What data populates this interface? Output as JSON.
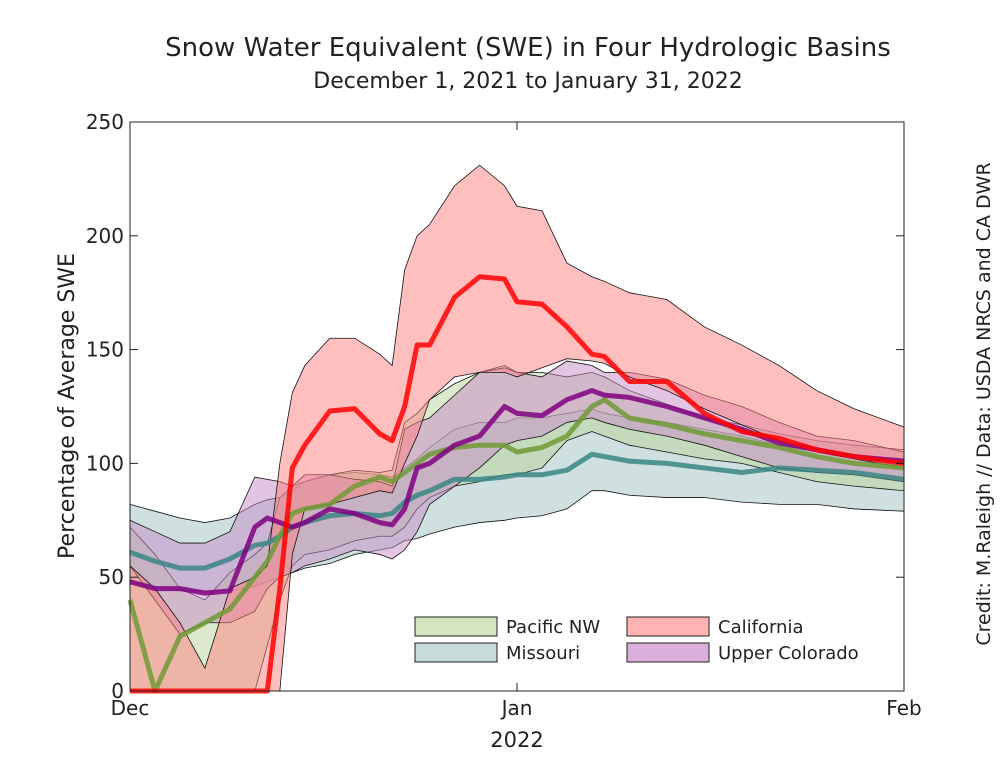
{
  "chart_data": {
    "type": "area",
    "title": "Snow Water Equivalent (SWE) in Four Hydrologic Basins",
    "subtitle": "December 1, 2021 to January 31, 2022",
    "ylabel": "Percentage of Average SWE",
    "xlabel": "2022",
    "credit": "Credit: M.Raleigh // Data: USDA NRCS and CA DWR",
    "xlim": [
      "2021-12-01",
      "2022-02-01"
    ],
    "ylim": [
      0,
      250
    ],
    "grid": false,
    "legend_position": "bottom-right",
    "x_ticks": [
      {
        "date": "2021-12-01",
        "label": "Dec"
      },
      {
        "date": "2022-01-01",
        "label": "Jan"
      },
      {
        "date": "2022-02-01",
        "label": "Feb"
      }
    ],
    "y_ticks": [
      0,
      50,
      100,
      150,
      200,
      250
    ],
    "dates": [
      "2021-12-01",
      "2021-12-03",
      "2021-12-05",
      "2021-12-07",
      "2021-12-09",
      "2021-12-11",
      "2021-12-12",
      "2021-12-13",
      "2021-12-14",
      "2021-12-15",
      "2021-12-17",
      "2021-12-19",
      "2021-12-21",
      "2021-12-22",
      "2021-12-23",
      "2021-12-24",
      "2021-12-25",
      "2021-12-27",
      "2021-12-29",
      "2021-12-31",
      "2022-01-01",
      "2022-01-03",
      "2022-01-05",
      "2022-01-07",
      "2022-01-08",
      "2022-01-10",
      "2022-01-13",
      "2022-01-16",
      "2022-01-19",
      "2022-01-22",
      "2022-01-25",
      "2022-01-28",
      "2022-02-01"
    ],
    "series": [
      {
        "name": "Missouri",
        "fill": "#9fc2c2",
        "line": "#3a8585",
        "mean": [
          61,
          57,
          54,
          54,
          58,
          64,
          65,
          68,
          72,
          74,
          77,
          78,
          77,
          78,
          83,
          86,
          88,
          93,
          93,
          94,
          95,
          95,
          97,
          104,
          103,
          101,
          100,
          98,
          96,
          98,
          97,
          96,
          93
        ],
        "high": [
          82,
          79,
          76,
          74,
          76,
          82,
          84,
          85,
          88,
          92,
          95,
          96,
          95,
          94,
          98,
          102,
          107,
          115,
          118,
          118,
          120,
          120,
          122,
          124,
          122,
          120,
          118,
          115,
          112,
          108,
          106,
          104,
          101
        ],
        "low": [
          48,
          46,
          44,
          44,
          44,
          46,
          48,
          50,
          52,
          54,
          56,
          60,
          62,
          63,
          66,
          67,
          69,
          72,
          74,
          75,
          76,
          77,
          80,
          88,
          88,
          86,
          85,
          85,
          83,
          82,
          82,
          80,
          79
        ]
      },
      {
        "name": "Pacific NW",
        "fill": "#b9d49a",
        "line": "#6f9a35",
        "mean": [
          40,
          0,
          24,
          30,
          36,
          50,
          57,
          68,
          78,
          80,
          82,
          90,
          94,
          92,
          96,
          100,
          104,
          107,
          108,
          108,
          105,
          107,
          112,
          125,
          128,
          120,
          117,
          113,
          110,
          107,
          103,
          100,
          98
        ],
        "high": [
          72,
          60,
          45,
          40,
          52,
          60,
          65,
          85,
          90,
          92,
          95,
          97,
          96,
          97,
          118,
          122,
          128,
          135,
          140,
          143,
          140,
          140,
          138,
          140,
          138,
          132,
          126,
          120,
          117,
          113,
          110,
          108,
          106
        ],
        "low": [
          0,
          0,
          0,
          0,
          0,
          0,
          20,
          40,
          55,
          60,
          62,
          66,
          68,
          68,
          72,
          80,
          85,
          90,
          92,
          95,
          95,
          98,
          110,
          114,
          112,
          108,
          105,
          102,
          100,
          96,
          92,
          90,
          88
        ]
      },
      {
        "name": "Upper Colorado",
        "fill": "#c78ac7",
        "line": "#800080",
        "mean": [
          48,
          45,
          45,
          43,
          44,
          72,
          76,
          74,
          72,
          74,
          80,
          78,
          74,
          73,
          80,
          98,
          100,
          108,
          112,
          125,
          122,
          121,
          128,
          132,
          130,
          129,
          125,
          120,
          115,
          109,
          106,
          103,
          101
        ],
        "high": [
          75,
          70,
          65,
          65,
          70,
          94,
          93,
          92,
          90,
          95,
          95,
          93,
          92,
          90,
          115,
          118,
          120,
          130,
          140,
          142,
          140,
          138,
          145,
          143,
          140,
          140,
          137,
          130,
          125,
          118,
          112,
          110,
          105
        ],
        "low": [
          55,
          40,
          25,
          30,
          30,
          35,
          45,
          50,
          52,
          55,
          58,
          62,
          60,
          58,
          62,
          70,
          82,
          90,
          98,
          108,
          110,
          112,
          118,
          120,
          118,
          115,
          112,
          108,
          103,
          98,
          96,
          95,
          92
        ]
      },
      {
        "name": "California",
        "fill": "#ff8080",
        "line": "#ff0000",
        "mean": [
          0,
          0,
          0,
          0,
          0,
          0,
          0,
          45,
          98,
          108,
          123,
          124,
          113,
          110,
          125,
          152,
          152,
          173,
          182,
          181,
          171,
          170,
          160,
          148,
          147,
          136,
          136,
          122,
          114,
          111,
          106,
          103,
          100
        ],
        "high": [
          55,
          45,
          30,
          10,
          45,
          50,
          55,
          100,
          131,
          143,
          155,
          155,
          148,
          143,
          185,
          200,
          205,
          222,
          231,
          222,
          213,
          211,
          188,
          182,
          180,
          175,
          172,
          160,
          152,
          143,
          132,
          124,
          116
        ],
        "low": [
          0,
          0,
          0,
          0,
          0,
          0,
          0,
          0,
          60,
          80,
          82,
          85,
          88,
          87,
          100,
          112,
          128,
          138,
          140,
          140,
          138,
          142,
          146,
          145,
          144,
          138,
          132,
          124,
          117,
          110,
          105,
          102,
          98
        ]
      }
    ],
    "legend": [
      {
        "label": "Pacific NW",
        "swatch": "#d5e5c0"
      },
      {
        "label": "California",
        "swatch": "#ffb3b3"
      },
      {
        "label": "Missouri",
        "swatch": "#c7dada"
      },
      {
        "label": "Upper Colorado",
        "swatch": "#dcb0dc"
      }
    ]
  }
}
